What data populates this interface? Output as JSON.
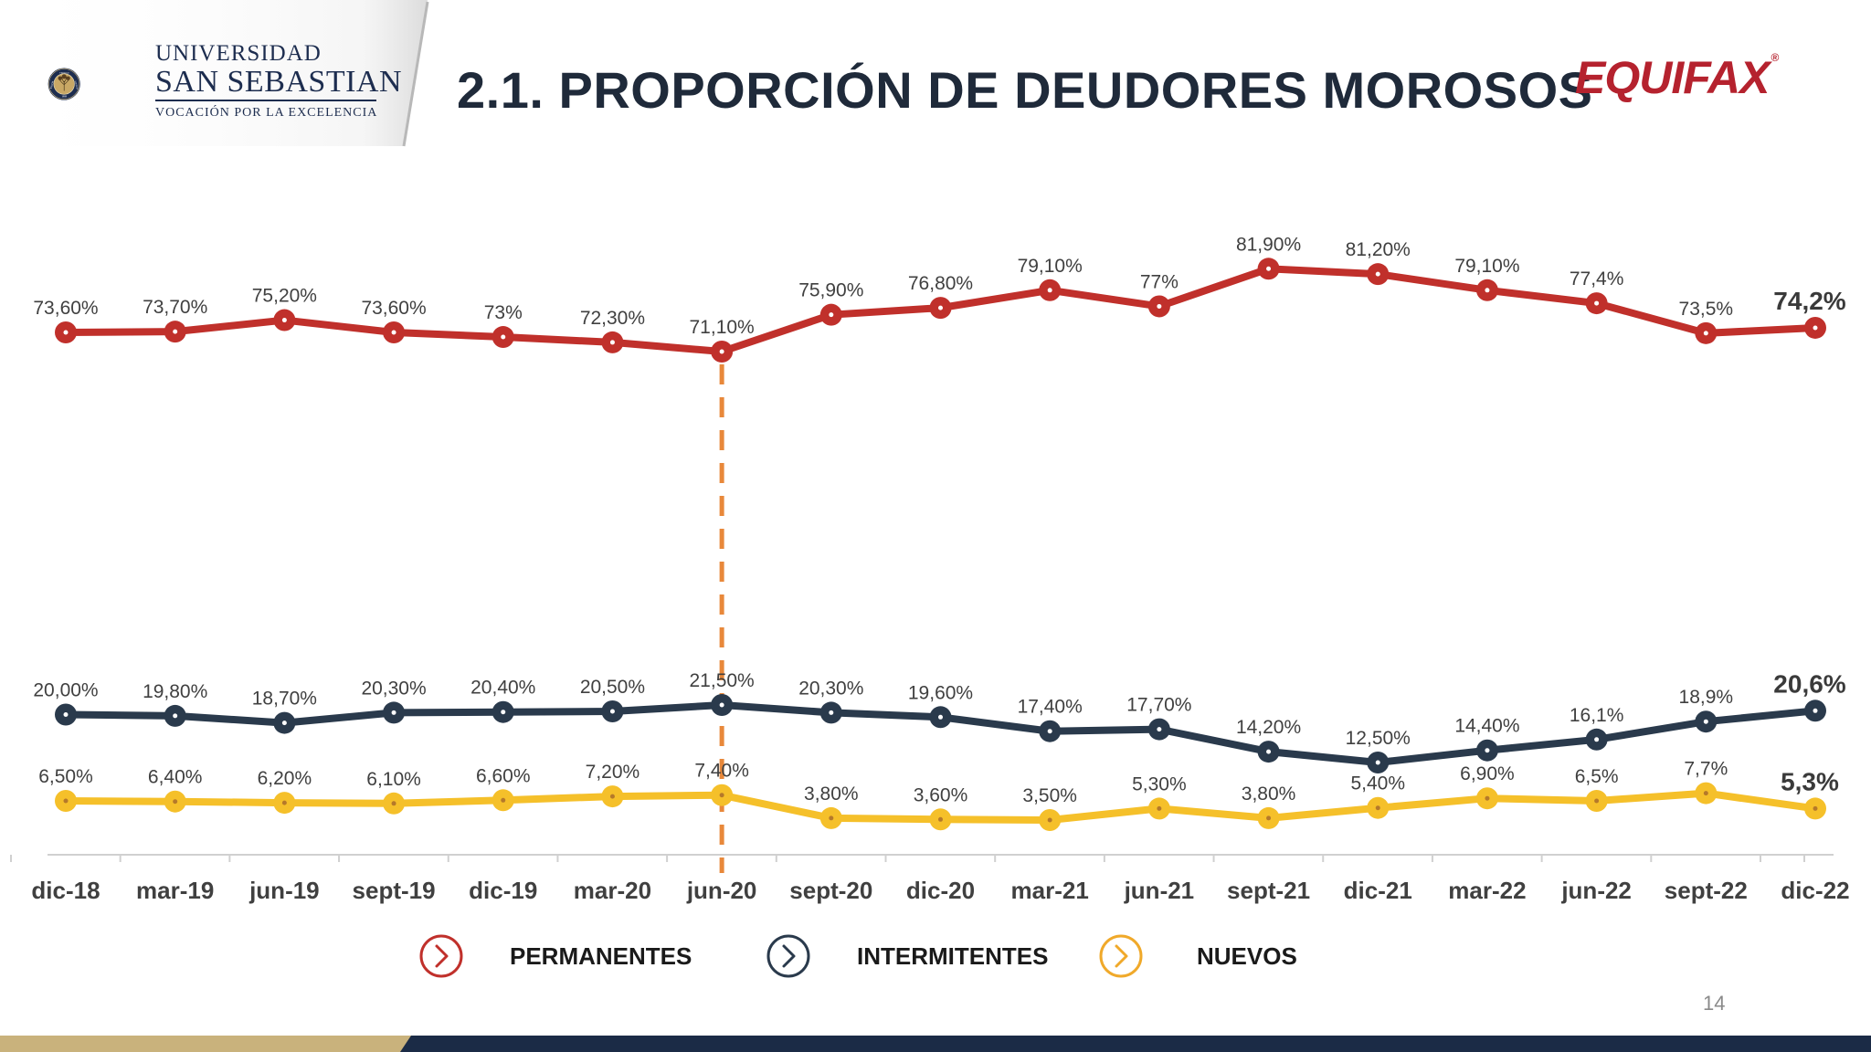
{
  "header": {
    "title": "2.1. PROPORCIÓN DE DEUDORES MOROSOS",
    "university": {
      "line1": "UNIVERSIDAD",
      "line2": "SAN SEBASTIAN",
      "line3": "VOCACIÓN POR LA EXCELENCIA",
      "seal_words": [
        "RAZÓN",
        "VERDAD",
        "VIRTUD",
        "1989"
      ]
    },
    "partner_logo": "EQUIFAX",
    "partner_logo_mark": "®"
  },
  "footer": {
    "page_number": "14"
  },
  "colors": {
    "permanentes": "#c0302b",
    "intermitentes": "#2a3a4c",
    "nuevos": "#f5c02a",
    "marker_line": "#e8883a",
    "navy": "#1b2b46",
    "gold": "#c9b27c"
  },
  "legend": [
    {
      "label": "PERMANENTES",
      "icon": "chevron-right-circle-icon",
      "color": "#c0302b"
    },
    {
      "label": "INTERMITENTES",
      "icon": "chevron-right-circle-icon",
      "color": "#2a3a4c"
    },
    {
      "label": "NUEVOS",
      "icon": "chevron-right-circle-icon",
      "color": "#f0a92a"
    }
  ],
  "chart_data": {
    "type": "line",
    "categories": [
      "dic-18",
      "mar-19",
      "jun-19",
      "sept-19",
      "dic-19",
      "mar-20",
      "jun-20",
      "sept-20",
      "dic-20",
      "mar-21",
      "jun-21",
      "sept-21",
      "dic-21",
      "mar-22",
      "jun-22",
      "sept-22",
      "dic-22"
    ],
    "ylim": [
      0,
      100
    ],
    "grid": false,
    "legend_position": "bottom",
    "reference_line": {
      "category": "jun-20",
      "style": "dashed"
    },
    "series": [
      {
        "name": "PERMANENTES",
        "values": [
          73.6,
          73.7,
          75.2,
          73.6,
          73.0,
          72.3,
          71.1,
          75.9,
          76.8,
          79.1,
          77.0,
          81.9,
          81.2,
          79.1,
          77.4,
          73.5,
          74.2
        ],
        "labels": [
          "73,60%",
          "73,70%",
          "75,20%",
          "73,60%",
          "73%",
          "72,30%",
          "71,10%",
          "75,90%",
          "76,80%",
          "79,10%",
          "77%",
          "81,90%",
          "81,20%",
          "79,10%",
          "77,4%",
          "73,5%",
          "74,2%"
        ]
      },
      {
        "name": "INTERMITENTES",
        "values": [
          20.0,
          19.8,
          18.7,
          20.3,
          20.4,
          20.5,
          21.5,
          20.3,
          19.6,
          17.4,
          17.7,
          14.2,
          12.5,
          14.4,
          16.1,
          18.9,
          20.6
        ],
        "labels": [
          "20,00%",
          "19,80%",
          "18,70%",
          "20,30%",
          "20,40%",
          "20,50%",
          "21,50%",
          "20,30%",
          "19,60%",
          "17,40%",
          "17,70%",
          "14,20%",
          "12,50%",
          "14,40%",
          "16,1%",
          "18,9%",
          "20,6%"
        ]
      },
      {
        "name": "NUEVOS",
        "values": [
          6.5,
          6.4,
          6.2,
          6.1,
          6.6,
          7.2,
          7.4,
          3.8,
          3.6,
          3.5,
          5.3,
          3.8,
          5.4,
          6.9,
          6.5,
          7.7,
          5.3
        ],
        "labels": [
          "6,50%",
          "6,40%",
          "6,20%",
          "6,10%",
          "6,60%",
          "7,20%",
          "7,40%",
          "3,80%",
          "3,60%",
          "3,50%",
          "5,30%",
          "3,80%",
          "5,40%",
          "6,90%",
          "6,5%",
          "7,7%",
          "5,3%"
        ]
      }
    ]
  }
}
